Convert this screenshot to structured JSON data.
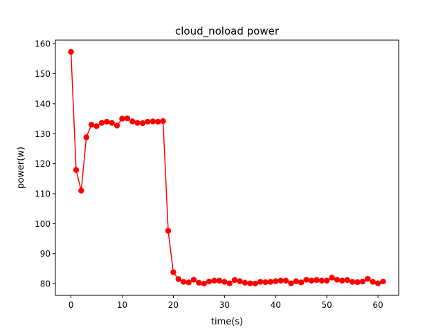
{
  "chart_data": {
    "type": "line",
    "title": "cloud_noload power",
    "xlabel": "time(s)",
    "ylabel": "power(w)",
    "xlim": [
      -3.05,
      64.05
    ],
    "ylim": [
      76.1,
      161.2
    ],
    "xticks": [
      0,
      10,
      20,
      30,
      40,
      50,
      60
    ],
    "yticks": [
      80,
      90,
      100,
      110,
      120,
      130,
      140,
      150,
      160
    ],
    "grid": false,
    "color": "#ff0000",
    "marker": "circle",
    "series": [
      {
        "x": [
          0,
          1,
          2,
          3,
          4,
          5,
          6,
          7,
          8,
          9,
          10,
          11,
          12,
          13,
          14,
          15,
          16,
          17,
          18,
          19,
          20,
          21,
          22,
          23,
          24,
          25,
          26,
          27,
          28,
          29,
          30,
          31,
          32,
          33,
          34,
          35,
          36,
          37,
          38,
          39,
          40,
          41,
          42,
          43,
          44,
          45,
          46,
          47,
          48,
          49,
          50,
          51,
          52,
          53,
          54,
          55,
          56,
          57,
          58,
          59,
          60,
          61
        ],
        "y": [
          157.3,
          117.9,
          111.0,
          128.8,
          133.0,
          132.5,
          133.6,
          134.0,
          133.6,
          132.7,
          135.0,
          135.1,
          134.1,
          133.6,
          133.5,
          134.0,
          134.1,
          134.0,
          134.2,
          97.6,
          83.8,
          81.5,
          80.6,
          80.4,
          81.3,
          80.3,
          80.0,
          80.7,
          81.0,
          81.0,
          80.6,
          80.1,
          81.2,
          80.8,
          80.3,
          80.1,
          80.0,
          80.6,
          80.5,
          80.6,
          80.8,
          81.0,
          81.0,
          80.1,
          80.8,
          80.4,
          81.3,
          81.0,
          81.2,
          81.0,
          81.0,
          82.0,
          81.3,
          81.0,
          81.2,
          80.6,
          80.5,
          80.7,
          81.6,
          80.6,
          80.1,
          80.7
        ]
      }
    ]
  }
}
